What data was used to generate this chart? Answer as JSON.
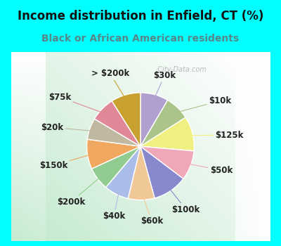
{
  "title": "Income distribution in Enfield, CT (%)",
  "subtitle": "Black or African American residents",
  "bg_color": "#00ffff",
  "labels": [
    "$30k",
    "$10k",
    "$125k",
    "$50k",
    "$100k",
    "$60k",
    "$40k",
    "$200k",
    "$150k",
    "$20k",
    "$75k",
    "> $200k"
  ],
  "values": [
    8.5,
    7.5,
    10.5,
    9.0,
    10.5,
    8.0,
    7.5,
    7.0,
    9.0,
    6.5,
    7.5,
    9.0
  ],
  "colors": [
    "#b0a0d0",
    "#aac48a",
    "#f0f080",
    "#f0a8b8",
    "#8888cc",
    "#f0c898",
    "#aabce8",
    "#90cc90",
    "#f0a860",
    "#c0b8a0",
    "#e08898",
    "#c8a030"
  ],
  "label_fontsize": 8.5,
  "title_fontsize": 12,
  "subtitle_fontsize": 10,
  "subtitle_color": "#558888",
  "title_color": "#111111",
  "watermark": "  City-Data.com",
  "watermark_color": "#aaaaaa"
}
